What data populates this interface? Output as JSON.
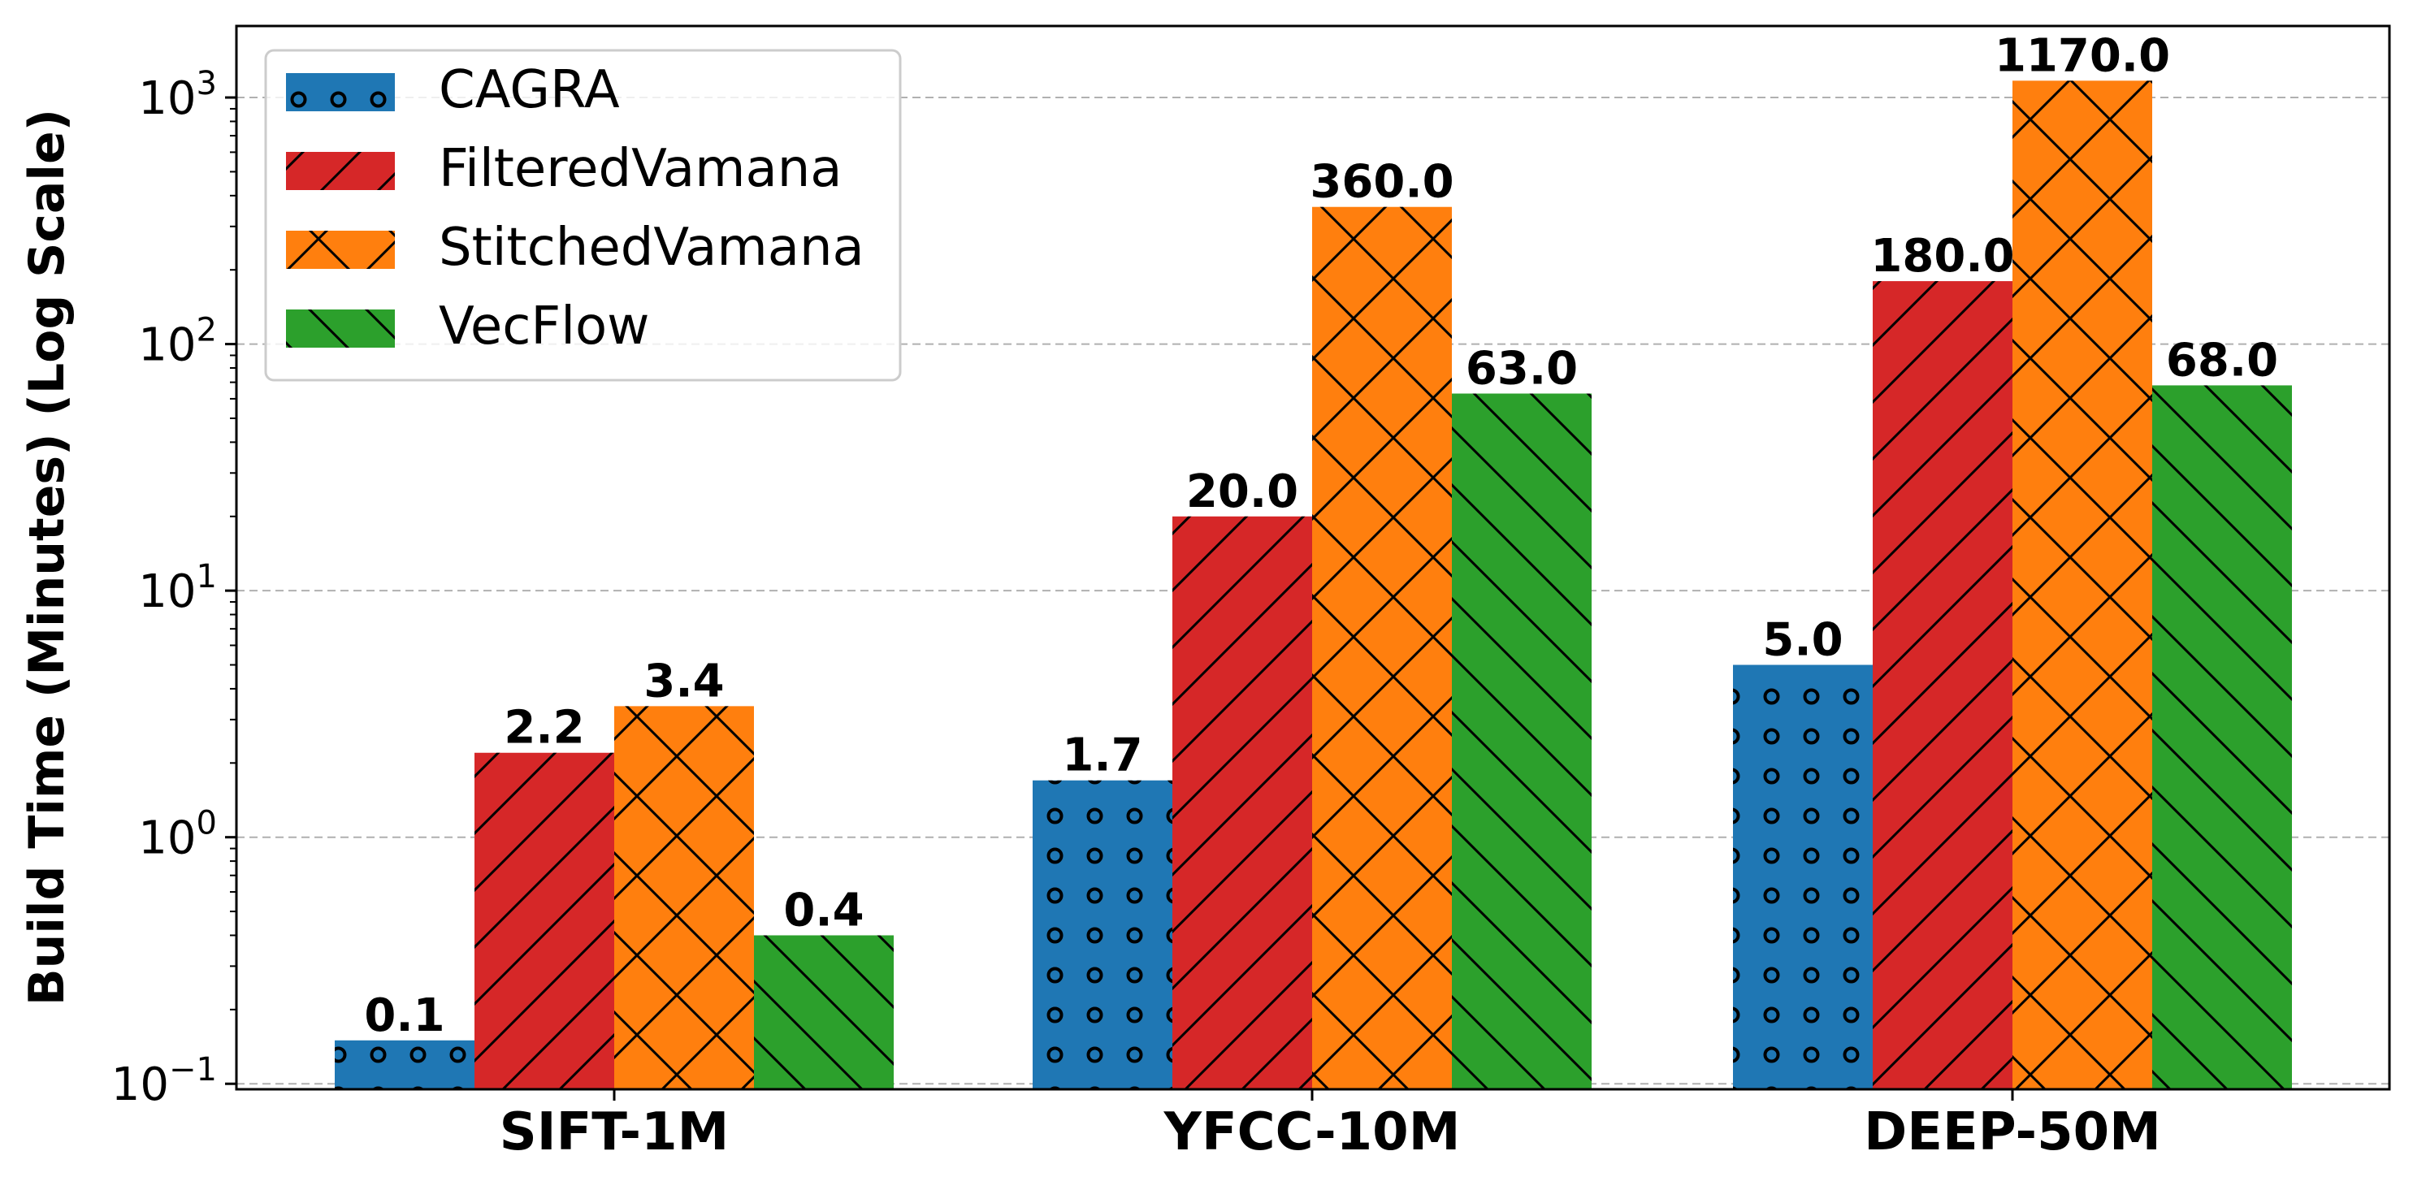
{
  "chart_data": {
    "type": "bar",
    "title": "",
    "xlabel": "",
    "ylabel": "Build Time (Minutes) (Log Scale)",
    "yscale": "log",
    "ylim": [
      0.095,
      1950
    ],
    "yticks": [
      {
        "base": "10",
        "exp": "−1",
        "value": 0.1
      },
      {
        "base": "10",
        "exp": "0",
        "value": 1
      },
      {
        "base": "10",
        "exp": "1",
        "value": 10
      },
      {
        "base": "10",
        "exp": "2",
        "value": 100
      },
      {
        "base": "10",
        "exp": "3",
        "value": 1000
      }
    ],
    "grid": "y-major-dashed",
    "legend_position": "top-left",
    "categories": [
      "SIFT-1M",
      "YFCC-10M",
      "DEEP-50M"
    ],
    "series": [
      {
        "name": "CAGRA",
        "color": "#1f77b4",
        "hatch": "circles",
        "values": [
          0.15,
          1.7,
          5.0
        ],
        "labels": [
          "0.1",
          "1.7",
          "5.0"
        ]
      },
      {
        "name": "FilteredVamana",
        "color": "#d62728",
        "hatch": "forward-slash",
        "values": [
          2.2,
          20.0,
          180.0
        ],
        "labels": [
          "2.2",
          "20.0",
          "180.0"
        ]
      },
      {
        "name": "StitchedVamana",
        "color": "#ff7f0e",
        "hatch": "cross",
        "values": [
          3.4,
          360.0,
          1170.0
        ],
        "labels": [
          "3.4",
          "360.0",
          "1170.0"
        ]
      },
      {
        "name": "VecFlow",
        "color": "#2ca02c",
        "hatch": "back-slash",
        "values": [
          0.4,
          63.0,
          68.0
        ],
        "labels": [
          "0.4",
          "63.0",
          "68.0"
        ]
      }
    ]
  }
}
